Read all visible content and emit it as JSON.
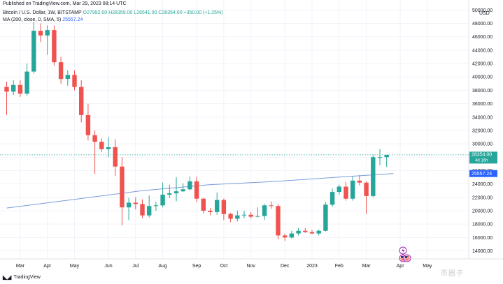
{
  "header": {
    "published": "Published on TradingView.com, Mar 29, 2023 08:14 UTC",
    "symbol_line": "Bitcoin / U.S. Dollar, 1W, BITSTAMP",
    "ohlc": "O27992.00 H28359.00 L26541.00 C28354.00 +350.00 (+1.25%)",
    "ma_label": "MA (200, close, 0, SMA, 5)",
    "ma_value": "25557.24",
    "currency": "USD"
  },
  "footer": {
    "brand": "TradingView",
    "watermark": "币圈子"
  },
  "colors": {
    "up": "#26a69a",
    "down": "#ef5350",
    "ma": "#7b9bd8",
    "grid": "#f0f3fa",
    "axis_text": "#131722"
  },
  "icons": [
    "tradingview-logo-icon",
    "lightning-event-icon",
    "us-flag-event-icon"
  ],
  "chart_data": {
    "type": "candlestick",
    "symbol": "Bitcoin / U.S. Dollar",
    "timeframe": "1W",
    "ylim": [
      12800,
      51500
    ],
    "y_ticks": [
      "14000.00",
      "16000.00",
      "18000.00",
      "20000.00",
      "22000.00",
      "24000.00",
      "26000.00",
      "28000.00",
      "30000.00",
      "32000.00",
      "34000.00",
      "36000.00",
      "38000.00",
      "40000.00",
      "42000.00",
      "44000.00",
      "46000.00",
      "48000.00",
      "50000.00"
    ],
    "x_ticks": [
      {
        "label": "Mar",
        "week": 2
      },
      {
        "label": "Apr",
        "week": 6
      },
      {
        "label": "May",
        "week": 10
      },
      {
        "label": "Jun",
        "week": 15
      },
      {
        "label": "Jul",
        "week": 19
      },
      {
        "label": "Aug",
        "week": 23
      },
      {
        "label": "Sep",
        "week": 28
      },
      {
        "label": "Oct",
        "week": 32
      },
      {
        "label": "Nov",
        "week": 36
      },
      {
        "label": "Dec",
        "week": 41
      },
      {
        "label": "2023",
        "week": 45
      },
      {
        "label": "Feb",
        "week": 49
      },
      {
        "label": "Mar",
        "week": 53
      },
      {
        "label": "Apr",
        "week": 58
      },
      {
        "label": "May",
        "week": 62
      }
    ],
    "last_price": {
      "value": 28354,
      "label": "28354.00",
      "countdown": "4d 16h"
    },
    "ma_last": {
      "value": 25557.24,
      "label": "25557.24"
    },
    "ma_series": [
      [
        0,
        20400
      ],
      [
        10,
        21700
      ],
      [
        20,
        23000
      ],
      [
        30,
        23900
      ],
      [
        40,
        24400
      ],
      [
        50,
        25100
      ],
      [
        57,
        25557.24
      ]
    ],
    "candles": [
      [
        38500,
        37800,
        39300,
        34300
      ],
      [
        37800,
        38800,
        39500,
        37300
      ],
      [
        38800,
        37500,
        39500,
        37000
      ],
      [
        37500,
        40800,
        42000,
        37200
      ],
      [
        40800,
        46900,
        48200,
        40500
      ],
      [
        46900,
        46200,
        48000,
        45200
      ],
      [
        46200,
        47000,
        47700,
        43300
      ],
      [
        47000,
        42200,
        47700,
        41700
      ],
      [
        42200,
        39700,
        43000,
        39000
      ],
      [
        39700,
        40300,
        41000,
        38700
      ],
      [
        40300,
        38500,
        41000,
        38000
      ],
      [
        38500,
        34300,
        39500,
        33200
      ],
      [
        34300,
        31300,
        36000,
        30500
      ],
      [
        31300,
        30300,
        32000,
        25500
      ],
      [
        30300,
        29200,
        30800,
        28800
      ],
      [
        29200,
        29500,
        31000,
        28000
      ],
      [
        29500,
        26600,
        30700,
        25200
      ],
      [
        26600,
        20500,
        28000,
        17800
      ],
      [
        20500,
        21200,
        21900,
        18600
      ],
      [
        21200,
        21000,
        22000,
        20200
      ],
      [
        21000,
        19300,
        21700,
        18900
      ],
      [
        19300,
        20700,
        22300,
        19000
      ],
      [
        20700,
        20800,
        21300,
        20000
      ],
      [
        20800,
        22400,
        24200,
        20500
      ],
      [
        22400,
        22600,
        23900,
        21900
      ],
      [
        22600,
        22900,
        25000,
        21400
      ],
      [
        22900,
        23200,
        24100,
        22800
      ],
      [
        23200,
        24400,
        25100,
        23000
      ],
      [
        24400,
        21800,
        25100,
        21300
      ],
      [
        21800,
        20000,
        21900,
        19600
      ],
      [
        20000,
        19800,
        20400,
        19300
      ],
      [
        19800,
        21600,
        22700,
        19400
      ],
      [
        21600,
        19500,
        21800,
        18600
      ],
      [
        19500,
        18800,
        19700,
        18300
      ],
      [
        18800,
        19300,
        20000,
        18400
      ],
      [
        19300,
        19400,
        20000,
        18900
      ],
      [
        19400,
        19100,
        19800,
        18800
      ],
      [
        19100,
        19200,
        20500,
        19000
      ],
      [
        19200,
        20800,
        21000,
        18600
      ],
      [
        20800,
        20700,
        21400,
        20300
      ],
      [
        20700,
        16300,
        21000,
        15700
      ],
      [
        16300,
        16000,
        16600,
        15500
      ],
      [
        16000,
        16600,
        17000,
        15800
      ],
      [
        16600,
        17000,
        17400,
        16300
      ],
      [
        17000,
        16800,
        17400,
        16700
      ],
      [
        16800,
        16600,
        17100,
        16500
      ],
      [
        16600,
        17000,
        17200,
        16300
      ],
      [
        17000,
        20900,
        21300,
        16900
      ],
      [
        20900,
        22800,
        23300,
        20600
      ],
      [
        22800,
        23600,
        23900,
        22400
      ],
      [
        23600,
        21800,
        24300,
        21500
      ],
      [
        21800,
        24500,
        25200,
        21500
      ],
      [
        24500,
        24200,
        25300,
        23800
      ],
      [
        24200,
        22200,
        24400,
        19500
      ],
      [
        22200,
        28000,
        28400,
        22000
      ],
      [
        28000,
        28000,
        29200,
        26800
      ],
      [
        28000,
        28354,
        28359,
        26541
      ]
    ]
  }
}
